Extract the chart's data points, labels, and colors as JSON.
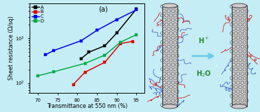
{
  "title": "(a)",
  "xlabel": "Transmittance at 550 nm (%)",
  "ylabel": "Sheet resistance (Ω/sq)",
  "xlim": [
    68,
    97
  ],
  "ylim_log": [
    60,
    6000
  ],
  "xticks": [
    70,
    75,
    80,
    85,
    90,
    95
  ],
  "background_color": "#c5edf5",
  "series": {
    "A": {
      "color": "#000000",
      "x": [
        81,
        83,
        87,
        90,
        95
      ],
      "y": [
        350,
        490,
        680,
        1300,
        4500
      ]
    },
    "B": {
      "color": "#dd0000",
      "x": [
        79,
        82,
        87,
        91,
        94
      ],
      "y": [
        93,
        175,
        290,
        760,
        850
      ]
    },
    "C": {
      "color": "#0000ee",
      "x": [
        72,
        74,
        81,
        85,
        90,
        95
      ],
      "y": [
        430,
        530,
        880,
        1500,
        2600,
        4300
      ]
    },
    "D": {
      "color": "#00aa44",
      "x": [
        70,
        74,
        82,
        87,
        91,
        95
      ],
      "y": [
        145,
        178,
        275,
        420,
        820,
        1200
      ]
    }
  },
  "legend_labels": [
    "A",
    "B",
    "C",
    "D"
  ],
  "legend_colors": [
    "#000000",
    "#dd0000",
    "#0000ee",
    "#00aa44"
  ],
  "arrow_color": "#66ccee",
  "h_text_color": "#228833",
  "dna_blue": "#4466cc",
  "dna_red": "#cc2222",
  "tube_fill": "#cccccc",
  "tube_edge": "#333333",
  "tube_ring": "#888888"
}
